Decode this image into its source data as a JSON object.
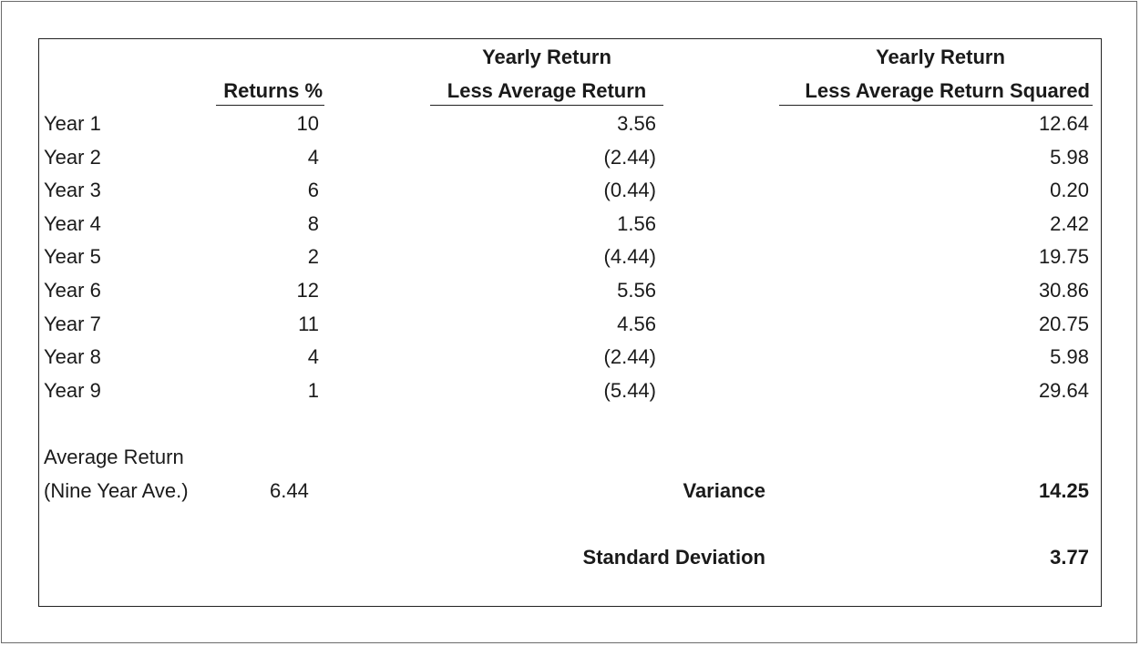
{
  "headers": {
    "returns": "Returns %",
    "diff_line1": "Yearly Return",
    "diff_line2": "Less Average Return",
    "sq_line1": "Yearly Return",
    "sq_line2": "Less Average Return Squared"
  },
  "rows": [
    {
      "label": "Year 1",
      "ret": "10",
      "diff": "3.56",
      "sq": "12.64"
    },
    {
      "label": "Year 2",
      "ret": "4",
      "diff": "(2.44)",
      "sq": "5.98"
    },
    {
      "label": "Year 3",
      "ret": "6",
      "diff": "(0.44)",
      "sq": "0.20"
    },
    {
      "label": "Year 4",
      "ret": "8",
      "diff": "1.56",
      "sq": "2.42"
    },
    {
      "label": "Year 5",
      "ret": "2",
      "diff": "(4.44)",
      "sq": "19.75"
    },
    {
      "label": "Year 6",
      "ret": "12",
      "diff": "5.56",
      "sq": "30.86"
    },
    {
      "label": "Year 7",
      "ret": "11",
      "diff": "4.56",
      "sq": "20.75"
    },
    {
      "label": "Year 8",
      "ret": "4",
      "diff": "(2.44)",
      "sq": "5.98"
    },
    {
      "label": "Year 9",
      "ret": "1",
      "diff": "(5.44)",
      "sq": "29.64"
    }
  ],
  "summary": {
    "avg_label_line1": "Average Return",
    "avg_label_line2": "(Nine Year Ave.)",
    "avg_value": "6.44",
    "variance_label": "Variance",
    "variance_value": "14.25",
    "stddev_label": "Standard Deviation",
    "stddev_value": "3.77"
  }
}
